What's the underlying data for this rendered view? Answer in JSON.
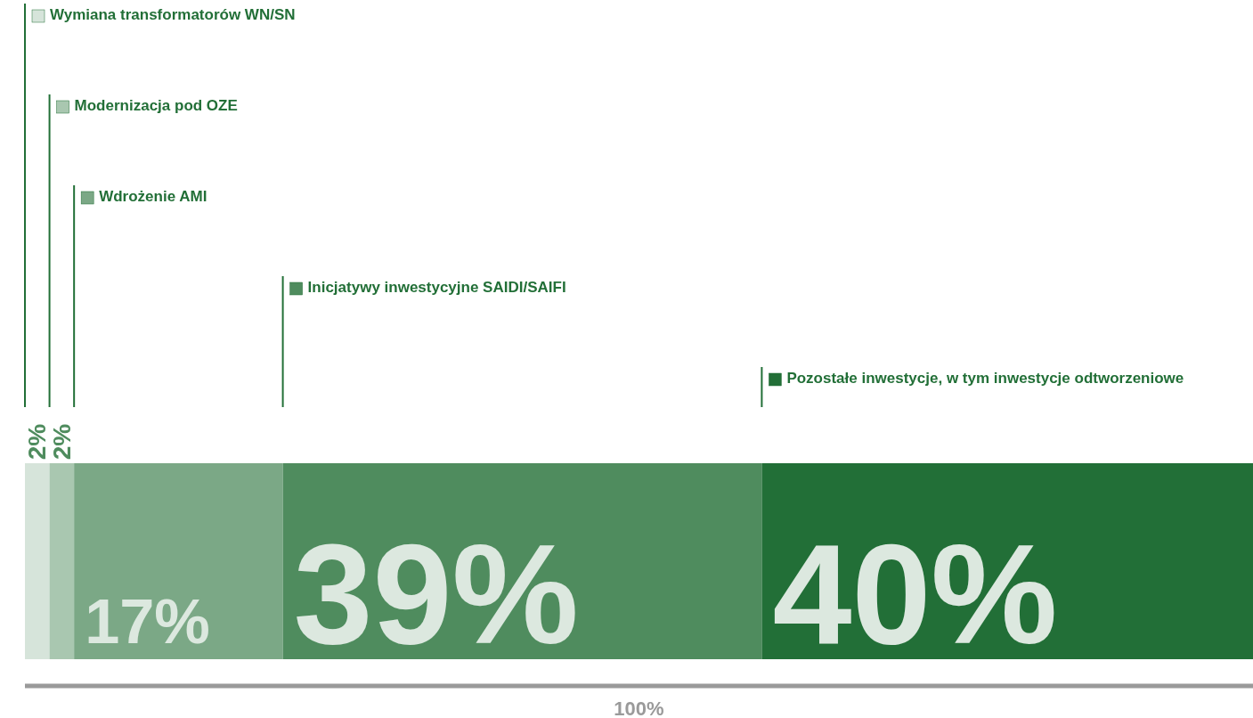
{
  "chart_data": {
    "type": "bar",
    "orientation": "horizontal",
    "stacked": true,
    "categories": [
      null
    ],
    "series": [
      {
        "name": "Wymiana transformatorów WN/SN",
        "color": "#d6e4da",
        "values": [
          2
        ],
        "value_labels": [
          "2%"
        ]
      },
      {
        "name": "Modernizacja pod OZE",
        "color": "#a9c7b0",
        "values": [
          2
        ],
        "value_labels": [
          "2%"
        ]
      },
      {
        "name": "Wdrożenie AMI",
        "color": "#7ba886",
        "values": [
          17
        ],
        "value_labels": [
          "17%"
        ]
      },
      {
        "name": "Inicjatywy inwestycyjne SAIDI/SAIFI",
        "color": "#4f8c5e",
        "values": [
          39
        ],
        "value_labels": [
          "39%"
        ]
      },
      {
        "name": "Pozostałe inwestycje, w tym inwestycje odtworzeniowe",
        "color": "#226f37",
        "values": [
          40
        ],
        "value_labels": [
          "40%"
        ]
      }
    ],
    "totals": [
      "100%"
    ],
    "legend": "top"
  }
}
